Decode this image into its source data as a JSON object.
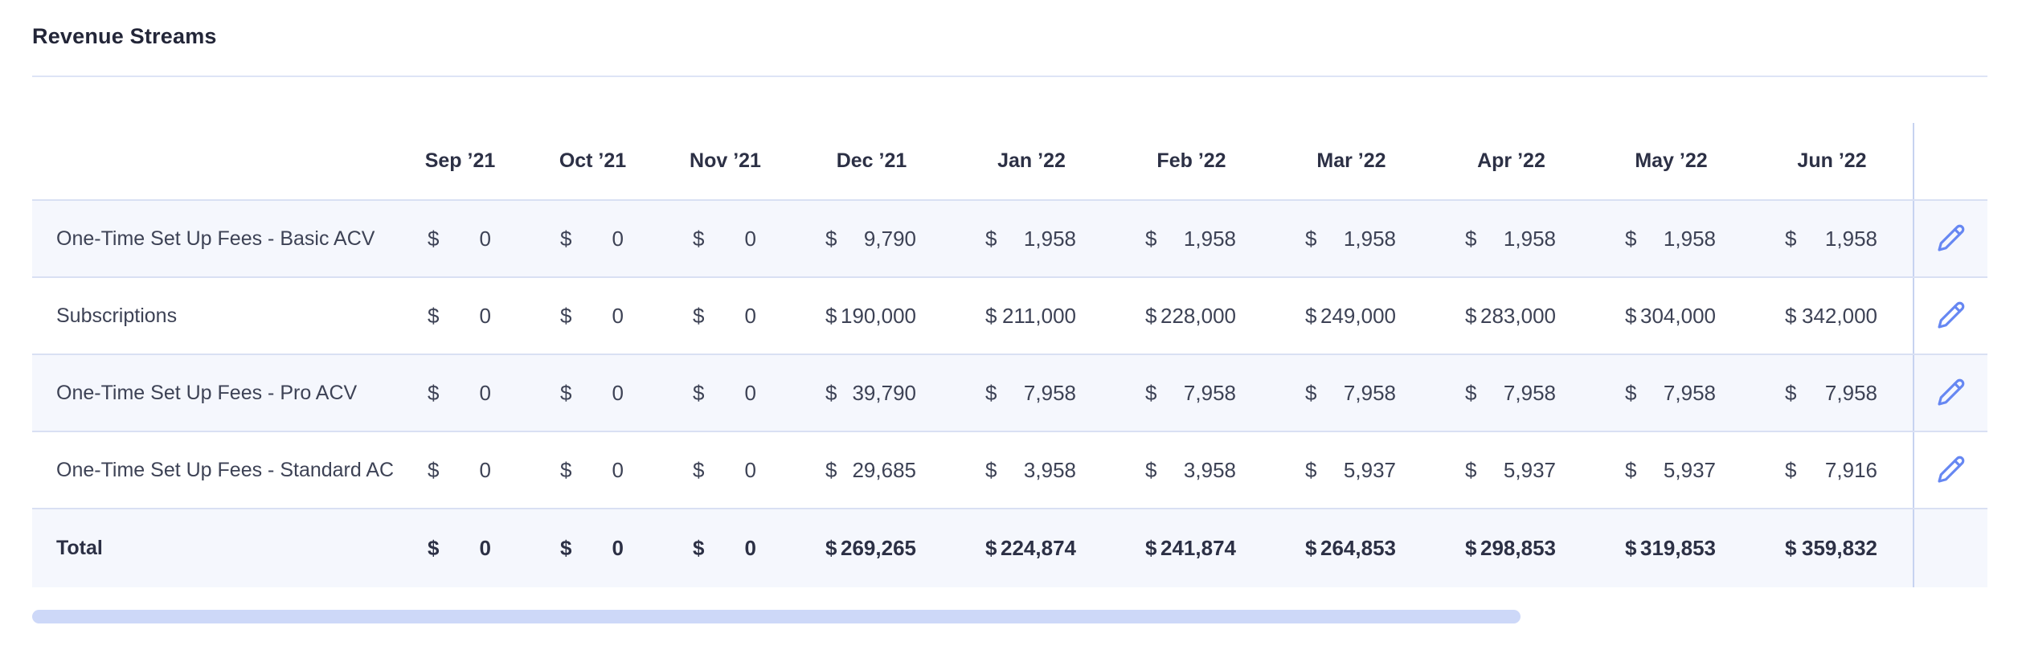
{
  "page": {
    "title": "Revenue Streams"
  },
  "table": {
    "currency": "$",
    "columns": [
      "Sep ’21",
      "Oct ’21",
      "Nov ’21",
      "Dec ’21",
      "Jan ’22",
      "Feb ’22",
      "Mar ’22",
      "Apr ’22",
      "May ’22",
      "Jun ’22"
    ],
    "rows": [
      {
        "label": "One-Time Set Up Fees - Basic ACV",
        "values": [
          "0",
          "0",
          "0",
          "9,790",
          "1,958",
          "1,958",
          "1,958",
          "1,958",
          "1,958",
          "1,958"
        ]
      },
      {
        "label": "Subscriptions",
        "values": [
          "0",
          "0",
          "0",
          "190,000",
          "211,000",
          "228,000",
          "249,000",
          "283,000",
          "304,000",
          "342,000"
        ]
      },
      {
        "label": "One-Time Set Up Fees - Pro ACV",
        "values": [
          "0",
          "0",
          "0",
          "39,790",
          "7,958",
          "7,958",
          "7,958",
          "7,958",
          "7,958",
          "7,958"
        ]
      },
      {
        "label": "One-Time Set Up Fees - Standard ACV",
        "values": [
          "0",
          "0",
          "0",
          "29,685",
          "3,958",
          "3,958",
          "5,937",
          "5,937",
          "5,937",
          "7,916"
        ]
      }
    ],
    "total_row": {
      "label": "Total",
      "values": [
        "0",
        "0",
        "0",
        "269,265",
        "224,874",
        "241,874",
        "264,853",
        "298,853",
        "319,853",
        "359,832"
      ]
    },
    "row_action_icon": "pencil-icon"
  },
  "scrollbar": {
    "orientation": "horizontal"
  },
  "colors": {
    "accent": "#6687f2",
    "row_alt_bg": "#f5f7fd",
    "row_border": "#d9e0f3",
    "vertical_divider": "#c7d3f0",
    "scrollbar_thumb": "#cdd8f8",
    "text_primary": "#2c3045",
    "text_secondary": "#3d4255",
    "title_divider": "#dee4f6"
  }
}
